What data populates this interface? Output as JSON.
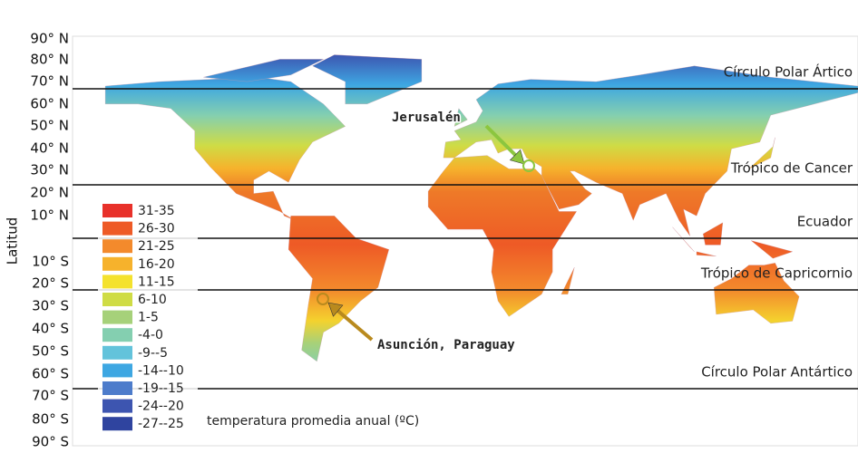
{
  "y_axis": {
    "label": "Latitud",
    "ticks": [
      "90° N",
      "80° N",
      "70° N",
      "60° N",
      "50° N",
      "40° N",
      "30° N",
      "20° N",
      "10° N",
      "10° S",
      "20° S",
      "30° S",
      "40° S",
      "50° S",
      "60° S",
      "70° S",
      "80° S",
      "90° S"
    ]
  },
  "reference_lines": [
    "Círculo Polar Ártico",
    "Trópico de Cancer",
    "Ecuador",
    "Trópico de Capricornio",
    "Círculo Polar Antártico"
  ],
  "legend": {
    "title": "temperatura promedia anual (ºC)",
    "items": [
      {
        "label": "31-35",
        "color": "#e8312a"
      },
      {
        "label": "26-30",
        "color": "#ee5a26"
      },
      {
        "label": "21-25",
        "color": "#f38a2c"
      },
      {
        "label": "16-20",
        "color": "#f6b22c"
      },
      {
        "label": "11-15",
        "color": "#f4e22e"
      },
      {
        "label": "6-10",
        "color": "#cfdc45"
      },
      {
        "label": "1-5",
        "color": "#a6d17a"
      },
      {
        "label": "-4-0",
        "color": "#84cfb0"
      },
      {
        "label": "-9--5",
        "color": "#63c3db"
      },
      {
        "label": "-14--10",
        "color": "#3ea7e2"
      },
      {
        "label": "-19--15",
        "color": "#4d7ccb"
      },
      {
        "label": "-24--20",
        "color": "#3d55b0"
      },
      {
        "label": "-27--25",
        "color": "#2f449f"
      }
    ]
  },
  "annotations": [
    "Jerusalén",
    "Asunción, Paraguay"
  ]
}
